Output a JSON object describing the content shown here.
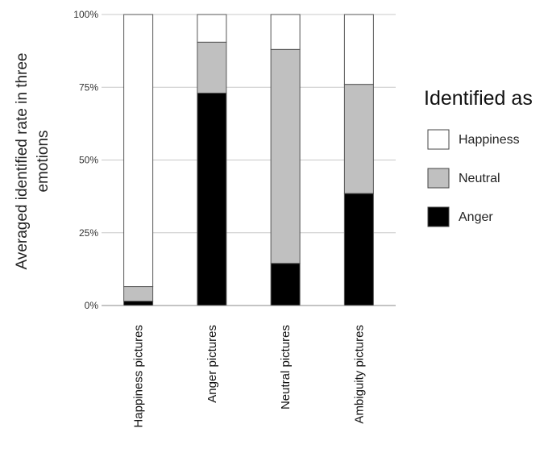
{
  "chart_data": {
    "type": "bar",
    "stacked": true,
    "percent_axis": true,
    "categories": [
      "Happiness pictures",
      "Anger pictures",
      "Neutral pictures",
      "Ambiguity pictures"
    ],
    "series": [
      {
        "name": "Anger",
        "color": "#000000",
        "values": [
          1.5,
          73,
          14.5,
          38.5
        ]
      },
      {
        "name": "Neutral",
        "color": "#c0c0c0",
        "values": [
          5,
          17.5,
          73.5,
          37.5
        ]
      },
      {
        "name": "Happiness",
        "color": "#ffffff",
        "values": [
          93.5,
          9.5,
          12,
          24
        ]
      }
    ],
    "ylabel_lines": [
      "Averaged identified rate in three",
      "emotions"
    ],
    "yticks": [
      0,
      25,
      50,
      75,
      100
    ],
    "ytick_labels": [
      "0%",
      "25%",
      "50%",
      "75%",
      "100%"
    ],
    "ylim": [
      0,
      100
    ],
    "grid": true,
    "legend": {
      "title": "Identified as",
      "placement": "right",
      "entries": [
        "Happiness",
        "Neutral",
        "Anger"
      ]
    }
  }
}
